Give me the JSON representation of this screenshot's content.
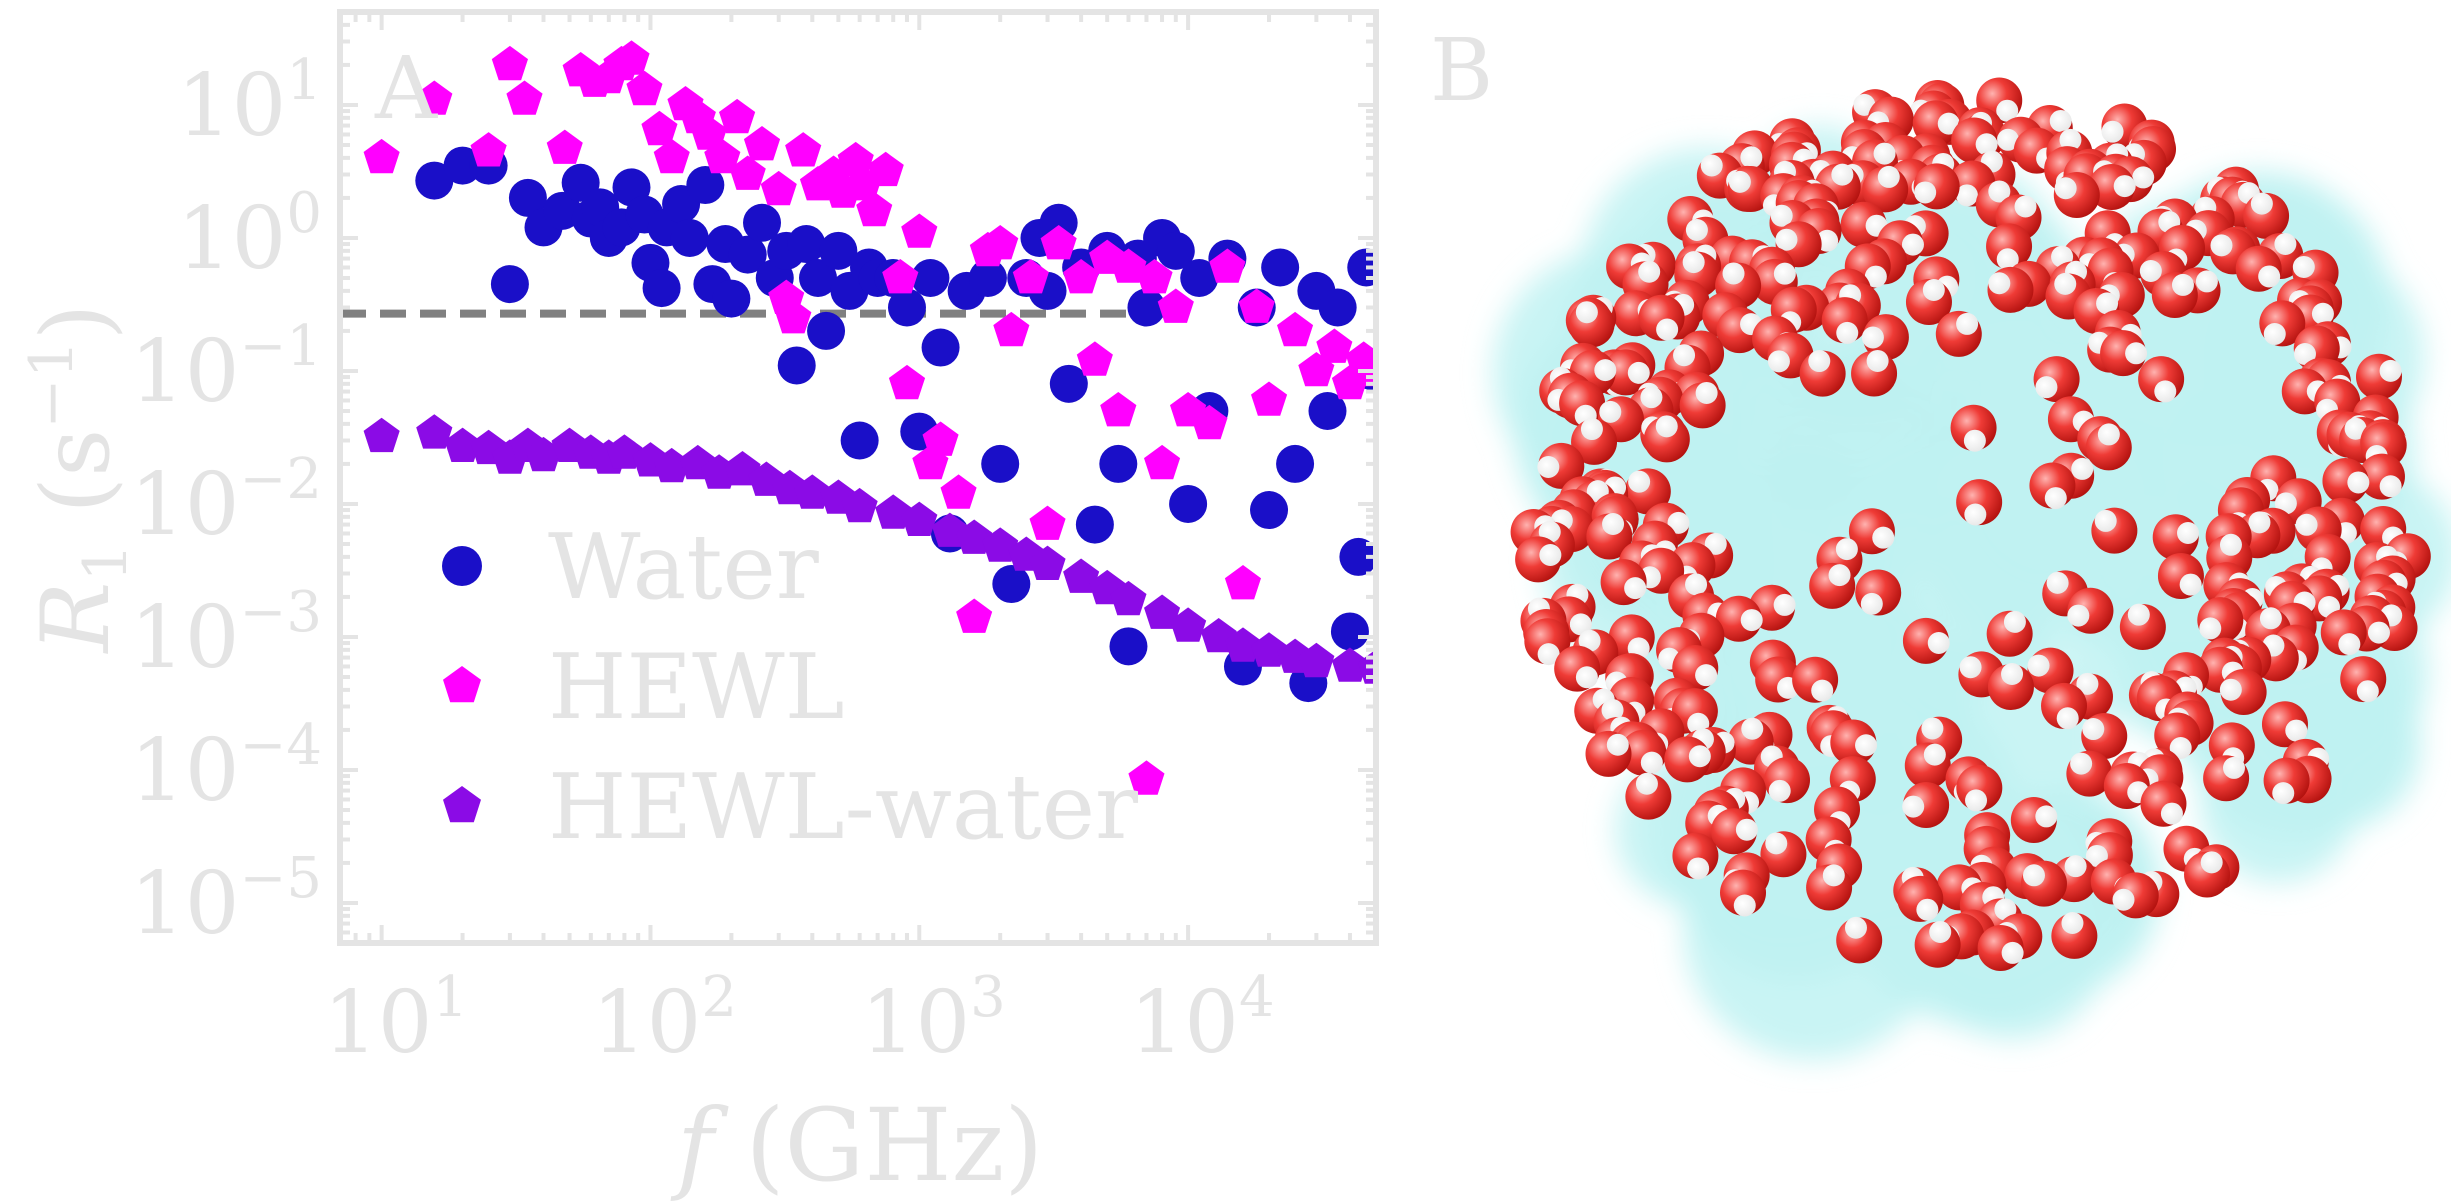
{
  "chart_data": {
    "type": "scatter",
    "panel_label": "A",
    "xlabel": "f (GHz)",
    "ylabel": "R1 (s−1)",
    "xscale": "log",
    "yscale": "log",
    "xlim": [
      7,
      50000
    ],
    "ylim": [
      5e-06,
      50
    ],
    "x_ticks": [
      {
        "value": 10,
        "base": "10",
        "exp": "1"
      },
      {
        "value": 100,
        "base": "10",
        "exp": "2"
      },
      {
        "value": 1000,
        "base": "10",
        "exp": "3"
      },
      {
        "value": 10000,
        "base": "10",
        "exp": "4"
      }
    ],
    "y_ticks": [
      {
        "value": 10,
        "base": "10",
        "exp": "1"
      },
      {
        "value": 1,
        "base": "10",
        "exp": "0"
      },
      {
        "value": 0.1,
        "base": "10",
        "exp": "−1"
      },
      {
        "value": 0.01,
        "base": "10",
        "exp": "−2"
      },
      {
        "value": 0.001,
        "base": "10",
        "exp": "−3"
      },
      {
        "value": 0.0001,
        "base": "10",
        "exp": "−4"
      },
      {
        "value": 1e-05,
        "base": "10",
        "exp": "−5"
      }
    ],
    "reference_line": {
      "y": 0.27,
      "x_range": [
        7,
        10000
      ],
      "color": "#808080",
      "style": "dashed"
    },
    "legend_position": "lower-left",
    "series": [
      {
        "name": "Water",
        "marker": "circle",
        "color": "#1a0fc8",
        "points": [
          [
            15.7,
            2.7
          ],
          [
            20,
            3.5
          ],
          [
            25,
            3.5
          ],
          [
            30,
            0.45
          ],
          [
            35,
            2.0
          ],
          [
            40,
            1.2
          ],
          [
            47,
            1.6
          ],
          [
            55,
            2.6
          ],
          [
            60,
            1.4
          ],
          [
            65,
            1.7
          ],
          [
            70,
            1.0
          ],
          [
            78,
            1.2
          ],
          [
            85,
            2.4
          ],
          [
            95,
            1.5
          ],
          [
            100,
            0.65
          ],
          [
            110,
            0.42
          ],
          [
            115,
            1.2
          ],
          [
            130,
            1.8
          ],
          [
            140,
            1.0
          ],
          [
            160,
            2.5
          ],
          [
            170,
            0.45
          ],
          [
            190,
            0.9
          ],
          [
            200,
            0.35
          ],
          [
            230,
            0.75
          ],
          [
            260,
            1.3
          ],
          [
            290,
            0.5
          ],
          [
            320,
            0.8
          ],
          [
            350,
            0.11
          ],
          [
            380,
            0.9
          ],
          [
            420,
            0.5
          ],
          [
            450,
            0.2
          ],
          [
            500,
            0.8
          ],
          [
            550,
            0.4
          ],
          [
            600,
            0.03
          ],
          [
            650,
            0.6
          ],
          [
            700,
            0.5
          ],
          [
            800,
            0.5
          ],
          [
            900,
            0.3
          ],
          [
            1000,
            0.035
          ],
          [
            1100,
            0.5
          ],
          [
            1200,
            0.15
          ],
          [
            1300,
            0.006
          ],
          [
            1500,
            0.4
          ],
          [
            1800,
            0.5
          ],
          [
            2000,
            0.02
          ],
          [
            2200,
            0.0025
          ],
          [
            2500,
            0.5
          ],
          [
            2800,
            1.0
          ],
          [
            3000,
            0.4
          ],
          [
            3300,
            1.3
          ],
          [
            3600,
            0.08
          ],
          [
            4000,
            0.6
          ],
          [
            4500,
            0.007
          ],
          [
            5000,
            0.8
          ],
          [
            5500,
            0.02
          ],
          [
            6000,
            0.00085
          ],
          [
            6500,
            0.7
          ],
          [
            7000,
            0.3
          ],
          [
            8000,
            1.0
          ],
          [
            9000,
            0.8
          ],
          [
            10000,
            0.01
          ],
          [
            11000,
            0.5
          ],
          [
            12000,
            0.05
          ],
          [
            14000,
            0.7
          ],
          [
            16000,
            0.0006
          ],
          [
            18000,
            0.3
          ],
          [
            20000,
            0.009
          ],
          [
            22000,
            0.6
          ],
          [
            25000,
            0.02
          ],
          [
            28000,
            0.00045
          ],
          [
            30000,
            0.4
          ],
          [
            33000,
            0.05
          ],
          [
            36000,
            0.3
          ],
          [
            40000,
            0.0011
          ],
          [
            43000,
            0.004
          ],
          [
            46000,
            0.6
          ],
          [
            48000,
            0.1
          ]
        ]
      },
      {
        "name": "HEWL",
        "marker": "pentagon",
        "color": "#ff00ff",
        "points": [
          [
            10,
            4
          ],
          [
            15.7,
            11
          ],
          [
            25,
            4.5
          ],
          [
            30,
            20
          ],
          [
            34,
            11
          ],
          [
            48,
            4.7
          ],
          [
            55,
            18
          ],
          [
            62,
            15
          ],
          [
            70,
            16
          ],
          [
            78,
            20
          ],
          [
            85,
            22
          ],
          [
            95,
            13
          ],
          [
            108,
            6.5
          ],
          [
            120,
            4
          ],
          [
            135,
            10
          ],
          [
            150,
            8
          ],
          [
            165,
            6
          ],
          [
            185,
            4
          ],
          [
            210,
            8
          ],
          [
            230,
            3
          ],
          [
            260,
            5
          ],
          [
            300,
            2.3
          ],
          [
            320,
            0.35
          ],
          [
            340,
            0.25
          ],
          [
            370,
            4.5
          ],
          [
            420,
            2.5
          ],
          [
            480,
            3
          ],
          [
            520,
            2.2
          ],
          [
            580,
            3.8
          ],
          [
            620,
            2.5
          ],
          [
            680,
            1.6
          ],
          [
            750,
            3.2
          ],
          [
            850,
            0.5
          ],
          [
            900,
            0.08
          ],
          [
            1000,
            1.1
          ],
          [
            1100,
            0.02
          ],
          [
            1200,
            0.03
          ],
          [
            1400,
            0.012
          ],
          [
            1600,
            0.0014
          ],
          [
            1800,
            0.8
          ],
          [
            2000,
            0.9
          ],
          [
            2200,
            0.2
          ],
          [
            2600,
            0.5
          ],
          [
            3000,
            0.007
          ],
          [
            3300,
            0.9
          ],
          [
            4000,
            0.5
          ],
          [
            4500,
            0.12
          ],
          [
            5000,
            0.7
          ],
          [
            5500,
            0.05
          ],
          [
            6000,
            0.6
          ],
          [
            7000,
            8.5e-05
          ],
          [
            7500,
            0.5
          ],
          [
            8000,
            0.02
          ],
          [
            9000,
            0.3
          ],
          [
            10000,
            0.05
          ],
          [
            12000,
            0.04
          ],
          [
            14000,
            0.6
          ],
          [
            16000,
            0.0025
          ],
          [
            18000,
            0.3
          ],
          [
            20000,
            0.06
          ],
          [
            25000,
            0.2
          ],
          [
            30000,
            0.1
          ],
          [
            35000,
            0.15
          ],
          [
            40000,
            0.08
          ],
          [
            45000,
            0.12
          ],
          [
            50000,
            0.1
          ]
        ]
      },
      {
        "name": "HEWL-water",
        "marker": "pentagon",
        "color": "#8b0be6",
        "points": [
          [
            10,
            0.032
          ],
          [
            15.7,
            0.034
          ],
          [
            20,
            0.027
          ],
          [
            25,
            0.026
          ],
          [
            30,
            0.022
          ],
          [
            35,
            0.027
          ],
          [
            40,
            0.023
          ],
          [
            50,
            0.027
          ],
          [
            60,
            0.024
          ],
          [
            70,
            0.022
          ],
          [
            80,
            0.024
          ],
          [
            100,
            0.021
          ],
          [
            120,
            0.019
          ],
          [
            150,
            0.02
          ],
          [
            180,
            0.017
          ],
          [
            220,
            0.018
          ],
          [
            270,
            0.015
          ],
          [
            330,
            0.013
          ],
          [
            400,
            0.012
          ],
          [
            500,
            0.011
          ],
          [
            600,
            0.0095
          ],
          [
            800,
            0.0085
          ],
          [
            1000,
            0.0075
          ],
          [
            1300,
            0.0062
          ],
          [
            1600,
            0.0055
          ],
          [
            2000,
            0.0048
          ],
          [
            2500,
            0.0041
          ],
          [
            3000,
            0.0035
          ],
          [
            4000,
            0.0028
          ],
          [
            5000,
            0.0023
          ],
          [
            6000,
            0.0019
          ],
          [
            8000,
            0.0015
          ],
          [
            10000,
            0.0012
          ],
          [
            13000,
            0.001
          ],
          [
            16000,
            0.00085
          ],
          [
            20000,
            0.00078
          ],
          [
            25000,
            0.0007
          ],
          [
            30000,
            0.00065
          ],
          [
            40000,
            0.0006
          ],
          [
            50000,
            0.00058
          ]
        ]
      }
    ]
  },
  "image_panel": {
    "panel_label": "B",
    "colors": {
      "oxygen": "#e8312e",
      "hydrogen": "#ffffff",
      "protein_surface": "#bff2f2"
    }
  }
}
